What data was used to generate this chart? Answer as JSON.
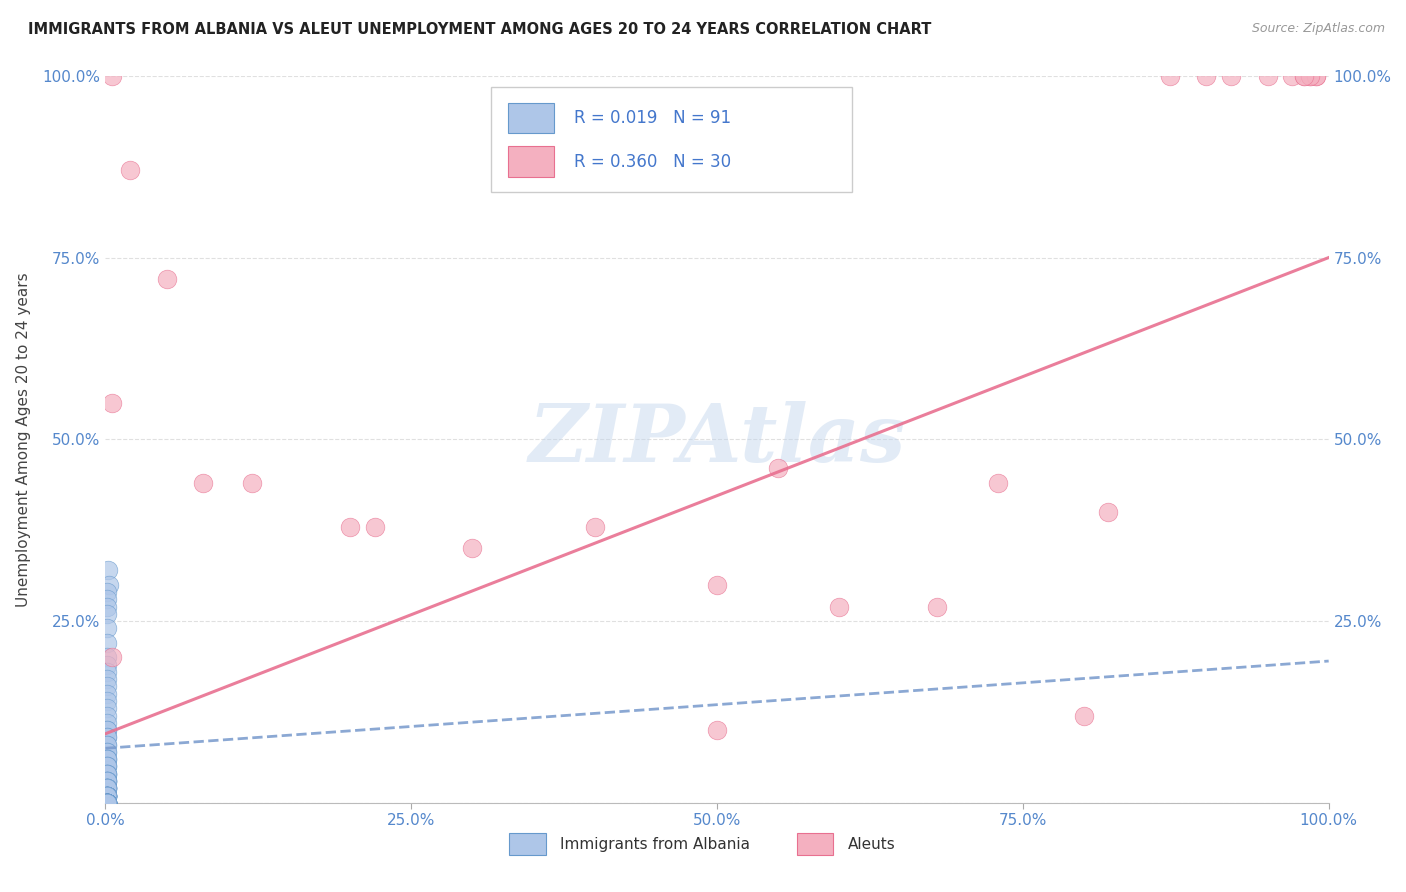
{
  "title": "IMMIGRANTS FROM ALBANIA VS ALEUT UNEMPLOYMENT AMONG AGES 20 TO 24 YEARS CORRELATION CHART",
  "source": "Source: ZipAtlas.com",
  "ylabel": "Unemployment Among Ages 20 to 24 years",
  "xlim": [
    0,
    1.0
  ],
  "ylim": [
    0,
    1.0
  ],
  "xticks": [
    0.0,
    0.25,
    0.5,
    0.75,
    1.0
  ],
  "xtick_labels": [
    "0.0%",
    "25.0%",
    "50.0%",
    "75.0%",
    "100.0%"
  ],
  "yticks": [
    0.0,
    0.25,
    0.5,
    0.75,
    1.0
  ],
  "ytick_labels_left": [
    "",
    "25.0%",
    "50.0%",
    "75.0%",
    "100.0%"
  ],
  "ytick_labels_right": [
    "",
    "25.0%",
    "50.0%",
    "75.0%",
    "100.0%"
  ],
  "blue_R": 0.019,
  "blue_N": 91,
  "pink_R": 0.36,
  "pink_N": 30,
  "blue_fill": "#aec6e8",
  "pink_fill": "#f4b0c0",
  "blue_edge": "#6699cc",
  "pink_edge": "#e87090",
  "blue_trend_color": "#7799cc",
  "pink_trend_color": "#e87090",
  "grid_color": "#e0e0e0",
  "axis_label_color": "#5588cc",
  "watermark": "ZIPAtlas",
  "blue_scatter_x": [
    0.002,
    0.003,
    0.001,
    0.001,
    0.001,
    0.001,
    0.001,
    0.001,
    0.001,
    0.001,
    0.001,
    0.001,
    0.001,
    0.001,
    0.001,
    0.001,
    0.001,
    0.001,
    0.001,
    0.001,
    0.001,
    0.001,
    0.001,
    0.001,
    0.001,
    0.001,
    0.001,
    0.001,
    0.001,
    0.001,
    0.001,
    0.001,
    0.001,
    0.001,
    0.001,
    0.001,
    0.001,
    0.001,
    0.001,
    0.001,
    0.001,
    0.001,
    0.001,
    0.001,
    0.001,
    0.001,
    0.001,
    0.001,
    0.001,
    0.001,
    0.001,
    0.001,
    0.001,
    0.001,
    0.001,
    0.001,
    0.001,
    0.001,
    0.001,
    0.001,
    0.001,
    0.001,
    0.001,
    0.001,
    0.001,
    0.001,
    0.001,
    0.001,
    0.001,
    0.001,
    0.001,
    0.001,
    0.001,
    0.001,
    0.001,
    0.001,
    0.001,
    0.001,
    0.001,
    0.001,
    0.001,
    0.001,
    0.001,
    0.001,
    0.001,
    0.001,
    0.001,
    0.001,
    0.001,
    0.001,
    0.001
  ],
  "blue_scatter_y": [
    0.32,
    0.3,
    0.29,
    0.28,
    0.27,
    0.26,
    0.24,
    0.22,
    0.2,
    0.19,
    0.18,
    0.17,
    0.16,
    0.15,
    0.14,
    0.13,
    0.12,
    0.11,
    0.1,
    0.1,
    0.09,
    0.09,
    0.08,
    0.08,
    0.07,
    0.07,
    0.06,
    0.06,
    0.06,
    0.05,
    0.05,
    0.05,
    0.04,
    0.04,
    0.04,
    0.04,
    0.03,
    0.03,
    0.03,
    0.03,
    0.03,
    0.02,
    0.02,
    0.02,
    0.02,
    0.02,
    0.02,
    0.02,
    0.01,
    0.01,
    0.01,
    0.01,
    0.01,
    0.01,
    0.01,
    0.01,
    0.01,
    0.01,
    0.01,
    0.01,
    0.0,
    0.0,
    0.0,
    0.0,
    0.0,
    0.0,
    0.0,
    0.0,
    0.0,
    0.0,
    0.0,
    0.0,
    0.0,
    0.0,
    0.0,
    0.0,
    0.0,
    0.0,
    0.0,
    0.0,
    0.0,
    0.0,
    0.0,
    0.0,
    0.0,
    0.0,
    0.0,
    0.0,
    0.0,
    0.0,
    0.0
  ],
  "pink_scatter_x": [
    0.005,
    0.02,
    0.05,
    0.005,
    0.12,
    0.22,
    0.3,
    0.4,
    0.005,
    0.08,
    0.2,
    0.5,
    0.6,
    0.73,
    0.82,
    0.87,
    0.9,
    0.92,
    0.95,
    0.97,
    0.98,
    0.985,
    0.99,
    0.99,
    0.985,
    0.98,
    0.8,
    0.68,
    0.55,
    0.5
  ],
  "pink_scatter_y": [
    1.0,
    0.87,
    0.72,
    0.55,
    0.44,
    0.38,
    0.35,
    0.38,
    0.2,
    0.44,
    0.38,
    0.3,
    0.27,
    0.44,
    0.4,
    1.0,
    1.0,
    1.0,
    1.0,
    1.0,
    1.0,
    1.0,
    1.0,
    1.0,
    1.0,
    1.0,
    0.12,
    0.27,
    0.46,
    0.1
  ],
  "blue_trend_start_y": 0.075,
  "blue_trend_end_y": 0.195,
  "pink_trend_start_y": 0.095,
  "pink_trend_end_y": 0.75
}
